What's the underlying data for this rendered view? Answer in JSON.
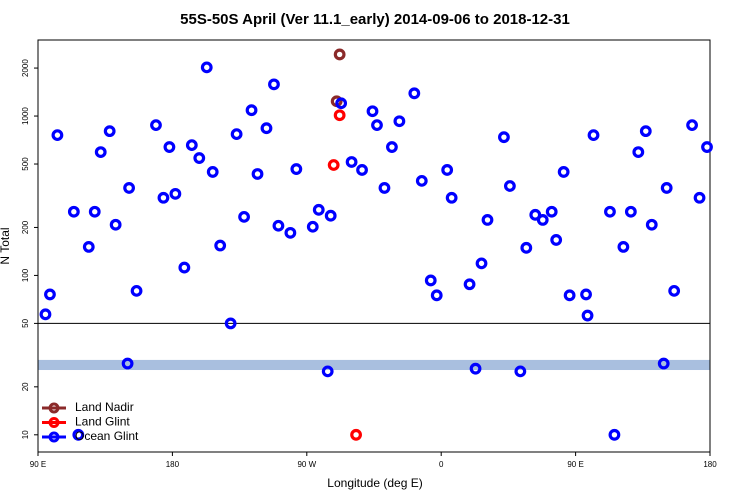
{
  "chart_data": {
    "type": "scatter",
    "title": "55S-50S April (Ver 11.1_early)   2014-09-06 to 2018-12-31",
    "x_label": "Longitude (deg E)",
    "y_label": "N Total",
    "log_y": true,
    "xlim": [
      90,
      540
    ],
    "ylim": [
      7.8,
      3000
    ],
    "xticks": [
      {
        "value": 90,
        "label": "90 E"
      },
      180,
      {
        "value": 270,
        "label": "90 W"
      },
      {
        "value": 360,
        "label": "0"
      },
      {
        "value": 450,
        "label": "90 E"
      },
      {
        "value": 540,
        "label": "180"
      }
    ],
    "yticks": [
      10,
      20,
      50,
      100,
      200,
      500,
      1000,
      2000
    ],
    "separator_y": 50,
    "band": {
      "range": [
        25.5,
        29.5
      ],
      "color": "#a9bfdf"
    },
    "legend": "bottom-left",
    "series": [
      {
        "name": "Land Nadir",
        "color": "#8b2a2a",
        "x": [
          292,
          290
        ],
        "values": [
          2435,
          1238
        ]
      },
      {
        "name": "Land Glint",
        "color": "#ff0000",
        "x": [
          292,
          288,
          303
        ],
        "values": [
          1012,
          493,
          10
        ]
      },
      {
        "name": "Ocean Glint",
        "color": "#0000ff",
        "x": [
          95,
          98,
          103,
          114,
          124,
          128,
          132,
          138,
          142,
          151,
          156,
          169,
          174,
          178,
          182,
          188,
          193,
          198,
          203,
          207,
          212,
          219,
          223,
          228,
          233,
          237,
          243,
          248,
          251,
          259,
          263,
          274,
          278,
          286,
          293,
          300,
          307,
          314,
          317,
          322,
          327,
          332,
          342,
          347,
          353,
          357,
          364,
          367,
          379,
          387,
          391,
          402,
          406,
          417,
          423,
          428,
          434,
          437,
          442,
          446,
          457,
          458,
          462,
          473,
          482,
          487,
          492,
          497,
          501,
          511,
          516,
          528,
          533,
          538,
          150,
          117,
          284,
          383,
          413,
          476,
          509
        ],
        "values": [
          57,
          76,
          759,
          251,
          151,
          251,
          594,
          804,
          208,
          354,
          80,
          877,
          307,
          639,
          325,
          112,
          657,
          545,
          2020,
          446,
          154,
          50,
          770,
          233,
          1088,
          433,
          839,
          1581,
          205,
          185,
          465,
          202,
          258,
          237,
          1203,
          515,
          459,
          1072,
          877,
          354,
          639,
          928,
          1389,
          392,
          93,
          75,
          459,
          307,
          88,
          119,
          223,
          737,
          364,
          149,
          240,
          223,
          251,
          167,
          446,
          75,
          76,
          56,
          759,
          251,
          151,
          251,
          594,
          804,
          208,
          354,
          80,
          877,
          307,
          639,
          28,
          10,
          25,
          26,
          25,
          10,
          28
        ]
      }
    ]
  }
}
